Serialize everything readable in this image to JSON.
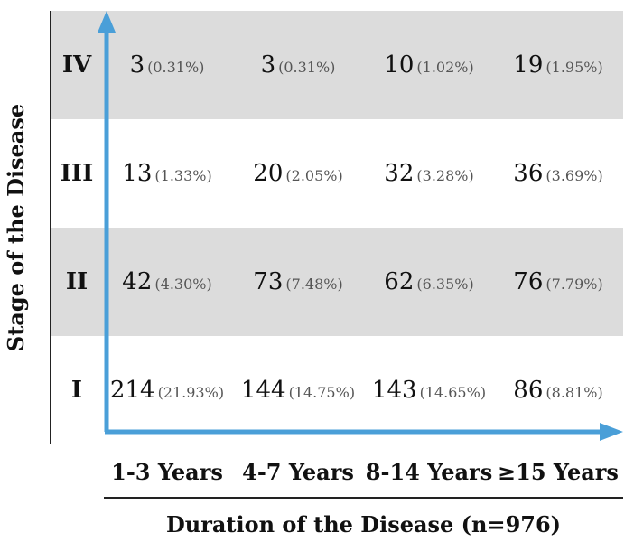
{
  "chart_data": {
    "type": "table",
    "xlabel": "Duration of the Disease (n=976)",
    "ylabel": "Stage of the Disease",
    "columns": [
      "1-3 Years",
      "4-7 Years",
      "8-14 Years",
      "≥15 Years"
    ],
    "rows": [
      {
        "stage": "IV",
        "cells": [
          {
            "count": "3",
            "pct": "(0.31%)"
          },
          {
            "count": "3",
            "pct": "(0.31%)"
          },
          {
            "count": "10",
            "pct": "(1.02%)"
          },
          {
            "count": "19",
            "pct": "(1.95%)"
          }
        ]
      },
      {
        "stage": "III",
        "cells": [
          {
            "count": "13",
            "pct": "(1.33%)"
          },
          {
            "count": "20",
            "pct": "(2.05%)"
          },
          {
            "count": "32",
            "pct": "(3.28%)"
          },
          {
            "count": "36",
            "pct": "(3.69%)"
          }
        ]
      },
      {
        "stage": "II",
        "cells": [
          {
            "count": "42",
            "pct": "(4.30%)"
          },
          {
            "count": "73",
            "pct": "(7.48%)"
          },
          {
            "count": "62",
            "pct": "(6.35%)"
          },
          {
            "count": "76",
            "pct": "(7.79%)"
          }
        ]
      },
      {
        "stage": "I",
        "cells": [
          {
            "count": "214",
            "pct": "(21.93%)"
          },
          {
            "count": "144",
            "pct": "(14.75%)"
          },
          {
            "count": "143",
            "pct": "(14.65%)"
          },
          {
            "count": "86",
            "pct": "(8.81%)"
          }
        ]
      }
    ],
    "colors": {
      "shaded_band": "#dcdcdc",
      "arrow": "#4a9fd8",
      "text": "#111111",
      "percent_text": "#555555"
    }
  }
}
